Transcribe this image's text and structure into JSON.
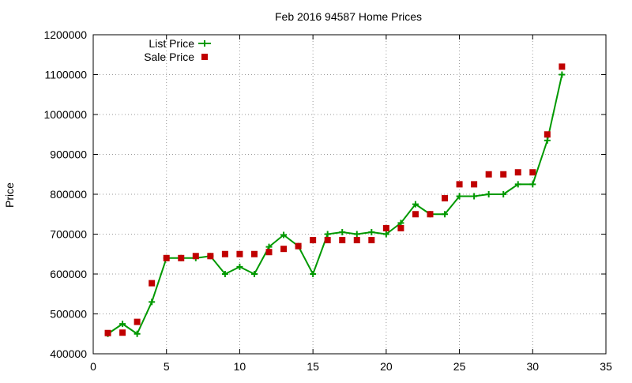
{
  "chart_data": {
    "type": "line",
    "title": "Feb 2016 94587 Home Prices",
    "xlabel": "",
    "ylabel": "Price",
    "xlim": [
      0,
      35
    ],
    "ylim": [
      400000,
      1200000
    ],
    "xticks": [
      0,
      5,
      10,
      15,
      20,
      25,
      30,
      35
    ],
    "yticks": [
      400000,
      500000,
      600000,
      700000,
      800000,
      900000,
      1000000,
      1100000,
      1200000
    ],
    "grid": true,
    "legend_position": "top-left",
    "series": [
      {
        "name": "List Price",
        "style": "line-plus",
        "color": "#009900",
        "x": [
          1,
          2,
          3,
          4,
          5,
          6,
          7,
          8,
          9,
          10,
          11,
          12,
          13,
          14,
          15,
          16,
          17,
          18,
          19,
          20,
          21,
          22,
          23,
          24,
          25,
          26,
          27,
          28,
          29,
          30,
          31,
          32
        ],
        "values": [
          450000,
          475000,
          450000,
          530000,
          640000,
          640000,
          640000,
          645000,
          600000,
          618000,
          600000,
          668000,
          698000,
          670000,
          600000,
          700000,
          705000,
          700000,
          705000,
          700000,
          728000,
          775000,
          750000,
          750000,
          795000,
          795000,
          800000,
          800000,
          825000,
          825000,
          935000,
          1100000
        ]
      },
      {
        "name": "Sale Price",
        "style": "square-points",
        "color": "#c00000",
        "x": [
          1,
          2,
          3,
          4,
          5,
          6,
          7,
          8,
          9,
          10,
          11,
          12,
          13,
          14,
          15,
          16,
          17,
          18,
          19,
          20,
          21,
          22,
          23,
          24,
          25,
          26,
          27,
          28,
          29,
          30,
          31,
          32
        ],
        "values": [
          452000,
          453000,
          480000,
          577000,
          640000,
          640000,
          645000,
          645000,
          650000,
          650000,
          650000,
          655000,
          663000,
          670000,
          685000,
          685000,
          685000,
          685000,
          685000,
          715000,
          715000,
          750000,
          750000,
          790000,
          825000,
          825000,
          850000,
          850000,
          855000,
          855000,
          950000,
          1120000
        ]
      }
    ]
  }
}
